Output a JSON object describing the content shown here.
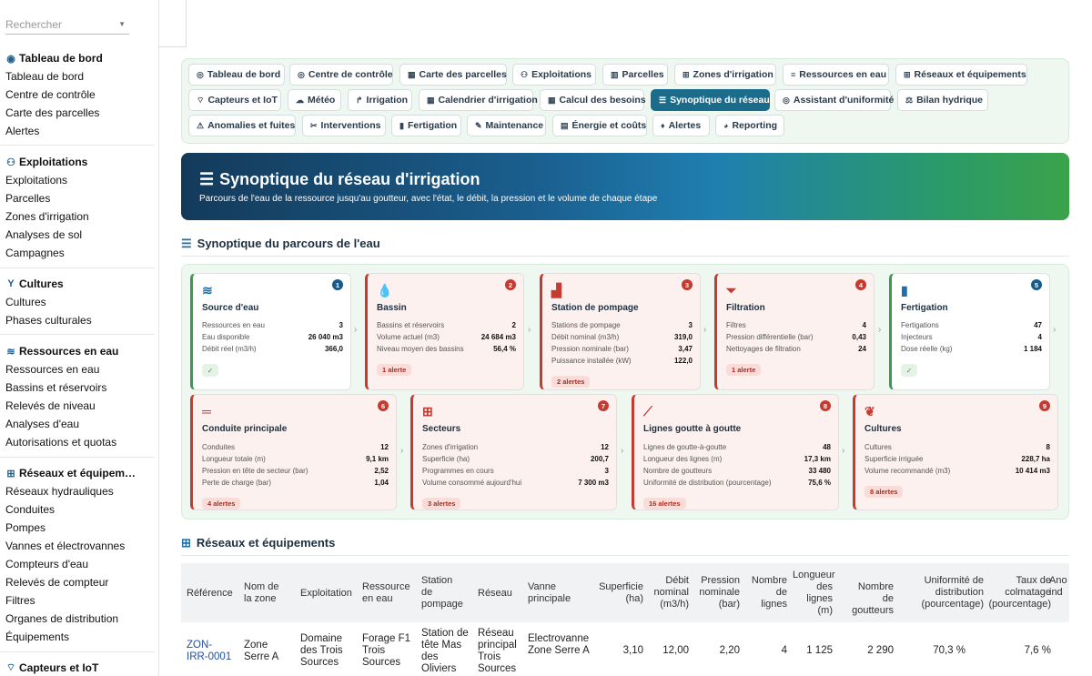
{
  "search": {
    "placeholder": "Rechercher"
  },
  "sidebar": {
    "sections": [
      {
        "title": "Tableau de bord",
        "items": [
          "Tableau de bord",
          "Centre de contrôle",
          "Carte des parcelles",
          "Alertes"
        ]
      },
      {
        "title": "Exploitations",
        "items": [
          "Exploitations",
          "Parcelles",
          "Zones d'irrigation",
          "Analyses de sol",
          "Campagnes"
        ]
      },
      {
        "title": "Cultures",
        "items": [
          "Cultures",
          "Phases culturales"
        ]
      },
      {
        "title": "Ressources en eau",
        "items": [
          "Ressources en eau",
          "Bassins et réservoirs",
          "Relevés de niveau",
          "Analyses d'eau",
          "Autorisations et quotas"
        ]
      },
      {
        "title": "Réseaux et équipem…",
        "items": [
          "Réseaux hydrauliques",
          "Conduites",
          "Pompes",
          "Vannes et électrovannes",
          "Compteurs d'eau",
          "Relevés de compteur",
          "Filtres",
          "Organes de distribution",
          "Équipements"
        ]
      },
      {
        "title": "Capteurs et IoT",
        "items": []
      }
    ]
  },
  "tabs": [
    "Tableau de bord",
    "Centre de contrôle",
    "Carte des parcelles",
    "Exploitations",
    "Parcelles",
    "Zones d'irrigation",
    "Ressources en eau",
    "Réseaux et équipements",
    "Capteurs et IoT",
    "Météo",
    "Irrigation",
    "Calendrier d'irrigation",
    "Calcul des besoins",
    "Synoptique du réseau",
    "Assistant d'uniformité",
    "Bilan hydrique",
    "Anomalies et fuites",
    "Interventions",
    "Fertigation",
    "Maintenance",
    "Énergie et coûts",
    "Alertes",
    "Reporting"
  ],
  "active_tab": "Synoptique du réseau",
  "banner": {
    "title": "Synoptique du réseau d'irrigation",
    "subtitle": "Parcours de l'eau de la ressource jusqu'au goutteur, avec l'état, le débit, la pression et le volume de chaque étape"
  },
  "flow": {
    "title": "Synoptique du parcours de l'eau",
    "cards": [
      {
        "n": "1",
        "title": "Source d'eau",
        "rows": [
          [
            "Ressources en eau",
            "3"
          ],
          [
            "Eau disponible",
            "26 040 m3"
          ],
          [
            "Débit réel (m3/h)",
            "366,0"
          ]
        ],
        "status": "ok",
        "badge": "✓"
      },
      {
        "n": "2",
        "title": "Bassin",
        "rows": [
          [
            "Bassins et réservoirs",
            "2"
          ],
          [
            "Volume actuel (m3)",
            "24 684 m3"
          ],
          [
            "Niveau moyen des bassins",
            "56,4 %"
          ]
        ],
        "status": "bad",
        "badge": "1 alerte"
      },
      {
        "n": "3",
        "title": "Station de pompage",
        "rows": [
          [
            "Stations de pompage",
            "3"
          ],
          [
            "Débit nominal (m3/h)",
            "319,0"
          ],
          [
            "Pression nominale (bar)",
            "3,47"
          ],
          [
            "Puissance installée (kW)",
            "122,0"
          ]
        ],
        "status": "bad",
        "badge": "2 alertes"
      },
      {
        "n": "4",
        "title": "Filtration",
        "rows": [
          [
            "Filtres",
            "4"
          ],
          [
            "Pression différentielle (bar)",
            "0,43"
          ],
          [
            "Nettoyages de filtration",
            "24"
          ]
        ],
        "status": "bad",
        "badge": "1 alerte"
      },
      {
        "n": "5",
        "title": "Fertigation",
        "rows": [
          [
            "Fertigations",
            "47"
          ],
          [
            "Injecteurs",
            "4"
          ],
          [
            "Dose réelle (kg)",
            "1 184"
          ]
        ],
        "status": "ok",
        "badge": "✓"
      },
      {
        "n": "6",
        "title": "Conduite principale",
        "rows": [
          [
            "Conduites",
            "12"
          ],
          [
            "Longueur totale (m)",
            "9,1 km"
          ],
          [
            "Pression en tête de secteur (bar)",
            "2,52"
          ],
          [
            "Perte de charge (bar)",
            "1,04"
          ]
        ],
        "status": "bad",
        "badge": "4 alertes"
      },
      {
        "n": "7",
        "title": "Secteurs",
        "rows": [
          [
            "Zones d'irrigation",
            "12"
          ],
          [
            "Superficie (ha)",
            "200,7"
          ],
          [
            "Programmes en cours",
            "3"
          ],
          [
            "Volume consommé aujourd'hui",
            "7 300 m3"
          ]
        ],
        "status": "bad",
        "badge": "3 alertes"
      },
      {
        "n": "8",
        "title": "Lignes goutte à goutte",
        "rows": [
          [
            "Lignes de goutte-à-goutte",
            "48"
          ],
          [
            "Longueur des lignes (m)",
            "17,3 km"
          ],
          [
            "Nombre de goutteurs",
            "33 480"
          ],
          [
            "Uniformité de distribution (pourcentage)",
            "75,6 %"
          ]
        ],
        "status": "bad",
        "badge": "16 alertes"
      },
      {
        "n": "9",
        "title": "Cultures",
        "rows": [
          [
            "Cultures",
            "8"
          ],
          [
            "Superficie irriguée",
            "228,7 ha"
          ],
          [
            "Volume recommandé (m3)",
            "10 414 m3"
          ]
        ],
        "status": "bad",
        "badge": "8 alertes"
      }
    ]
  },
  "networks": {
    "title": "Réseaux et équipements",
    "headers": [
      "Référence",
      "Nom de la zone",
      "Exploitation",
      "Ressource en eau",
      "Station de pompage",
      "Réseau",
      "Vanne principale",
      "Superficie (ha)",
      "Débit nominal (m3/h)",
      "Pression nominale (bar)",
      "Nombre de lignes",
      "Longueur des lignes (m)",
      "Nombre de goutteurs",
      "Uniformité de distribution (pourcentage)",
      "Taux de colmatage (pourcentage)",
      "Ano ind"
    ],
    "row": [
      "ZON-IRR-0001",
      "Zone Serre A",
      "Domaine des Trois Sources",
      "Forage F1 Trois Sources",
      "Station de tête Mas des Oliviers",
      "Réseau principal Trois Sources",
      "Electrovanne Zone Serre A",
      "3,10",
      "12,00",
      "2,20",
      "4",
      "1 125",
      "2 290",
      "70,3 %",
      "7,6 %",
      ""
    ]
  }
}
